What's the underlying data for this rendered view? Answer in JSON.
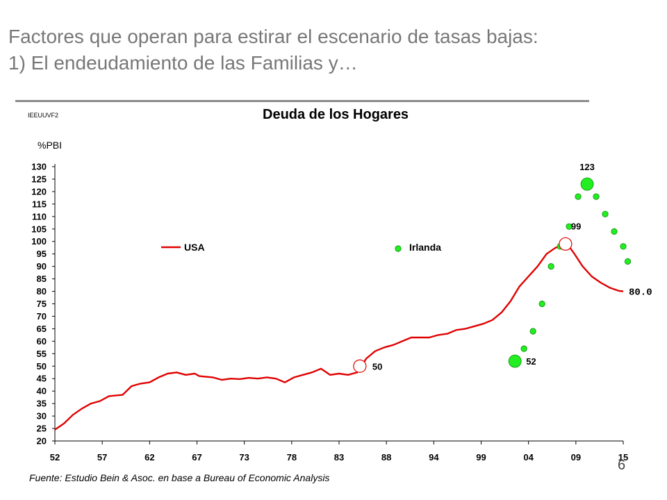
{
  "slide": {
    "title_line1": "Factores que operan para estirar el escenario de tasas bajas:",
    "title_line2": "1) El endeudamiento de las Familias y…",
    "page_number": "6"
  },
  "chart_data": {
    "type": "line",
    "series_code": "IEEUUVF2",
    "title": "Deuda de los Hogares",
    "ylabel": "%PBI",
    "xlabel": "",
    "ylim": [
      20,
      130
    ],
    "xlim": [
      1952,
      2015
    ],
    "yticks": [
      130,
      125,
      120,
      115,
      110,
      105,
      100,
      95,
      90,
      85,
      80,
      75,
      70,
      65,
      60,
      55,
      50,
      45,
      40,
      35,
      30,
      25,
      20
    ],
    "xtick_labels": [
      "52",
      "57",
      "62",
      "67",
      "73",
      "78",
      "83",
      "88",
      "94",
      "99",
      "04",
      "09",
      "15"
    ],
    "legend": {
      "position": "upper-left",
      "usa_label": "USA",
      "irl_label": "Irlanda"
    },
    "series": [
      {
        "name": "USA",
        "color": "#e00000",
        "points": [
          [
            1952.0,
            24.5
          ],
          [
            1953.0,
            27.0
          ],
          [
            1954.0,
            30.5
          ],
          [
            1955.0,
            33.0
          ],
          [
            1956.0,
            35.0
          ],
          [
            1957.0,
            36.0
          ],
          [
            1958.0,
            38.0
          ],
          [
            1959.5,
            38.5
          ],
          [
            1960.5,
            42.0
          ],
          [
            1961.5,
            43.0
          ],
          [
            1962.5,
            43.5
          ],
          [
            1963.5,
            45.5
          ],
          [
            1964.5,
            47.0
          ],
          [
            1965.5,
            47.5
          ],
          [
            1966.5,
            46.5
          ],
          [
            1967.5,
            47.0
          ],
          [
            1968.0,
            46.0
          ],
          [
            1969.5,
            45.5
          ],
          [
            1970.5,
            44.5
          ],
          [
            1971.5,
            45.0
          ],
          [
            1972.5,
            44.8
          ],
          [
            1973.5,
            45.3
          ],
          [
            1974.5,
            45.0
          ],
          [
            1975.5,
            45.5
          ],
          [
            1976.5,
            45.0
          ],
          [
            1977.5,
            43.5
          ],
          [
            1978.5,
            45.5
          ],
          [
            1979.5,
            46.5
          ],
          [
            1980.5,
            47.5
          ],
          [
            1981.5,
            49.0
          ],
          [
            1982.5,
            46.5
          ],
          [
            1983.5,
            47.0
          ],
          [
            1984.5,
            46.5
          ],
          [
            1985.5,
            47.5
          ],
          [
            1986.0,
            50.0
          ],
          [
            1986.5,
            53.0
          ],
          [
            1987.5,
            56.0
          ],
          [
            1988.5,
            57.5
          ],
          [
            1989.5,
            58.5
          ],
          [
            1990.5,
            60.0
          ],
          [
            1991.5,
            61.5
          ],
          [
            1992.5,
            61.5
          ],
          [
            1993.5,
            61.5
          ],
          [
            1994.5,
            62.5
          ],
          [
            1995.5,
            63.0
          ],
          [
            1996.5,
            64.5
          ],
          [
            1997.5,
            65.0
          ],
          [
            1998.5,
            66.0
          ],
          [
            1999.5,
            67.0
          ],
          [
            2000.5,
            68.5
          ],
          [
            2001.5,
            71.5
          ],
          [
            2002.5,
            76.0
          ],
          [
            2003.5,
            82.0
          ],
          [
            2004.5,
            86.0
          ],
          [
            2005.5,
            90.0
          ],
          [
            2006.5,
            95.0
          ],
          [
            2007.5,
            97.5
          ],
          [
            2008.5,
            98.5
          ],
          [
            2009.0,
            98.0
          ],
          [
            2009.5,
            95.5
          ],
          [
            2010.5,
            90.0
          ],
          [
            2011.5,
            86.0
          ],
          [
            2012.5,
            83.5
          ],
          [
            2013.5,
            81.5
          ],
          [
            2014.5,
            80.2
          ],
          [
            2015.0,
            80.0
          ]
        ]
      },
      {
        "name": "Irlanda",
        "color": "#22ee22",
        "points": [
          [
            2003.0,
            52
          ],
          [
            2004.0,
            57
          ],
          [
            2005.0,
            64
          ],
          [
            2006.0,
            75
          ],
          [
            2007.0,
            90
          ],
          [
            2008.0,
            98
          ],
          [
            2009.0,
            106
          ],
          [
            2010.0,
            118
          ],
          [
            2011.0,
            123
          ],
          [
            2012.0,
            118
          ],
          [
            2013.0,
            111
          ],
          [
            2014.0,
            104
          ],
          [
            2015.0,
            98
          ],
          [
            2015.5,
            92
          ]
        ]
      }
    ],
    "annotations": {
      "usa_low": {
        "x": 1985.8,
        "y": 50,
        "label": "50"
      },
      "usa_peak": {
        "x": 2008.6,
        "y": 99,
        "label": "99"
      },
      "usa_end": {
        "label": "80.0"
      },
      "irl_low": {
        "x": 2003.0,
        "y": 52,
        "label": "52"
      },
      "irl_peak": {
        "x": 2011.0,
        "y": 123,
        "label": "123"
      }
    },
    "source": "Fuente: Estudio Bein & Asoc. en base a Bureau of Economic Analysis"
  }
}
